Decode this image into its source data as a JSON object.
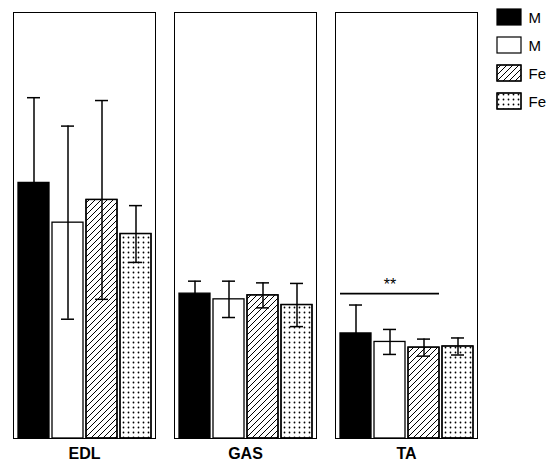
{
  "chart_data": {
    "type": "bar",
    "categories": [
      "EDL",
      "GAS",
      "TA"
    ],
    "series": [
      {
        "name": "M",
        "color": "black",
        "values": [
          4.5,
          2.55,
          1.85
        ],
        "errors": [
          1.5,
          0.22,
          0.5
        ]
      },
      {
        "name": "M",
        "color": "white",
        "values": [
          3.8,
          2.45,
          1.7
        ],
        "errors": [
          1.7,
          0.32,
          0.22
        ]
      },
      {
        "name": "Fe",
        "color": "white",
        "values": [
          4.2,
          2.52,
          1.6
        ],
        "errors": [
          1.75,
          0.22,
          0.15
        ]
      },
      {
        "name": "Fe",
        "color": "white",
        "values": [
          3.6,
          2.35,
          1.62
        ],
        "errors": [
          0.5,
          0.38,
          0.15
        ]
      }
    ],
    "ylim": [
      0,
      7.5
    ],
    "tick_labels": "x",
    "legend": "upper right",
    "annotations": [
      {
        "text": "**",
        "category": "TA",
        "y": 2.55
      }
    ]
  }
}
